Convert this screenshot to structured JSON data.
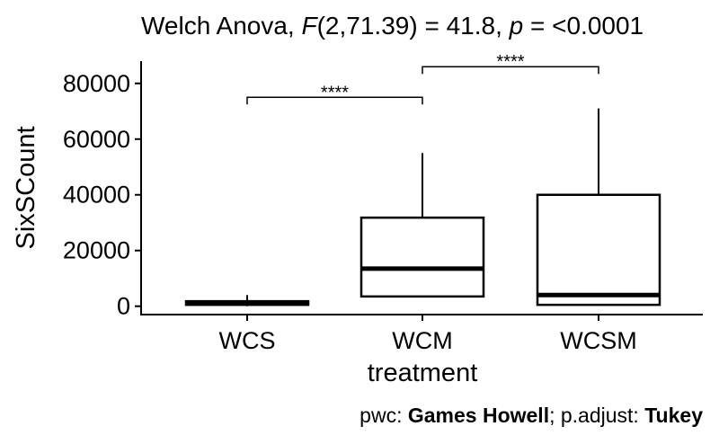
{
  "chart_data": {
    "type": "boxplot",
    "title": {
      "prefix": "Welch Anova, ",
      "stat_symbol": "F",
      "df": "(2,71.39)",
      "stat_value": " = 41.8, ",
      "p_symbol": "p",
      "p_value": " = <0.0001"
    },
    "xlabel": "treatment",
    "ylabel": "SixSCount",
    "ylim": [
      -3000,
      88000
    ],
    "yticks": [
      0,
      20000,
      40000,
      60000,
      80000
    ],
    "ytick_labels": [
      "0",
      "20000",
      "40000",
      "60000",
      "80000"
    ],
    "categories": [
      "WCS",
      "WCM",
      "WCSM"
    ],
    "boxes": [
      {
        "category": "WCS",
        "min": 0,
        "q1": 500,
        "median": 1000,
        "q3": 1800,
        "max": 4000
      },
      {
        "category": "WCM",
        "min": 3500,
        "q1": 3500,
        "median": 13500,
        "q3": 31800,
        "max": 55000
      },
      {
        "category": "WCSM",
        "min": 500,
        "q1": 500,
        "median": 4000,
        "q3": 40000,
        "max": 71000
      }
    ],
    "comparisons": [
      {
        "group1": "WCS",
        "group2": "WCM",
        "y": 75000,
        "label": "****"
      },
      {
        "group1": "WCM",
        "group2": "WCSM",
        "y": 86000,
        "label": "****"
      }
    ],
    "caption": {
      "pwc_label": "pwc: ",
      "pwc_value": "Games Howell",
      "sep": "; p.adjust: ",
      "adjust_value": "Tukey"
    },
    "grid": false,
    "legend": "none"
  }
}
